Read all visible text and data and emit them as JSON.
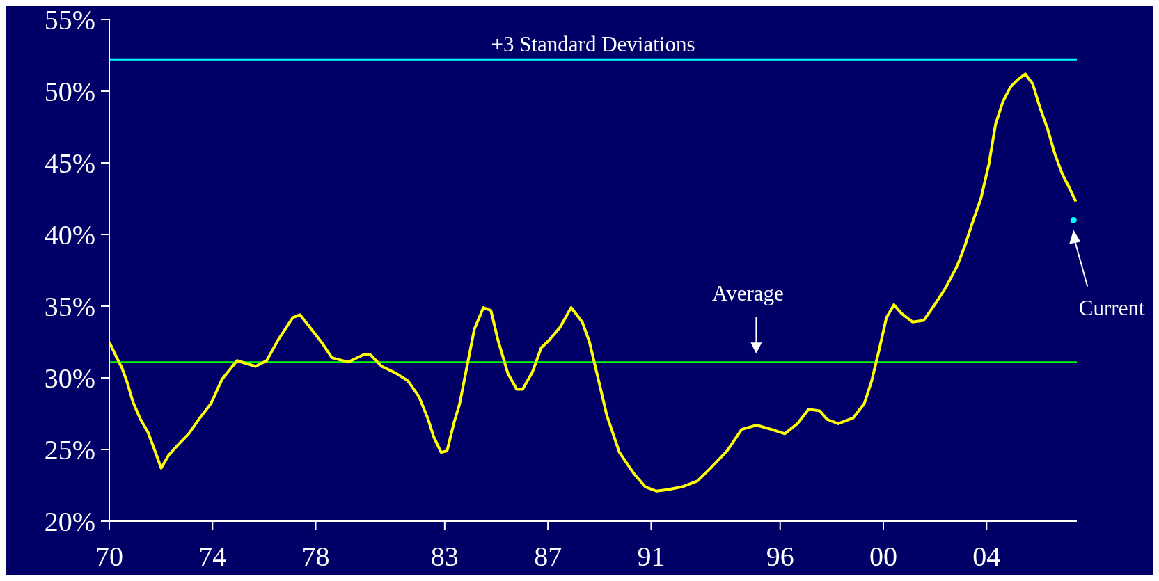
{
  "chart_data": {
    "type": "line",
    "xlim": [
      1970,
      2007.5
    ],
    "xticks": [
      {
        "value": 1970,
        "label": "70"
      },
      {
        "value": 1974,
        "label": "74"
      },
      {
        "value": 1978,
        "label": "78"
      },
      {
        "value": 1983,
        "label": "83"
      },
      {
        "value": 1987,
        "label": "87"
      },
      {
        "value": 1991,
        "label": "91"
      },
      {
        "value": 1996,
        "label": "96"
      },
      {
        "value": 2000,
        "label": "00"
      },
      {
        "value": 2004,
        "label": "04"
      }
    ],
    "ylim": [
      20,
      55
    ],
    "yticks": [
      {
        "value": 20,
        "label": "20%"
      },
      {
        "value": 25,
        "label": "25%"
      },
      {
        "value": 30,
        "label": "30%"
      },
      {
        "value": 35,
        "label": "35%"
      },
      {
        "value": 40,
        "label": "40%"
      },
      {
        "value": 45,
        "label": "45%"
      },
      {
        "value": 50,
        "label": "50%"
      },
      {
        "value": 55,
        "label": "55%"
      }
    ],
    "grid": false,
    "legend": false,
    "marker": "none",
    "line_style": "solid",
    "series": [
      {
        "color": "#ffff00",
        "x": [
          1970.0,
          1970.29,
          1970.49,
          1970.69,
          1970.92,
          1971.21,
          1971.5,
          1971.73,
          1972.01,
          1972.3,
          1972.65,
          1973.08,
          1973.51,
          1973.94,
          1974.37,
          1974.95,
          1975.67,
          1976.1,
          1976.53,
          1977.11,
          1977.39,
          1977.83,
          1978.26,
          1978.63,
          1979.26,
          1979.84,
          1980.13,
          1980.56,
          1981.13,
          1981.57,
          1982.0,
          1982.34,
          1982.57,
          1982.86,
          1983.09,
          1983.35,
          1983.58,
          1983.81,
          1984.15,
          1984.5,
          1984.79,
          1985.07,
          1985.45,
          1985.79,
          1986.02,
          1986.4,
          1986.74,
          1987.03,
          1987.46,
          1987.9,
          1988.33,
          1988.61,
          1988.9,
          1989.28,
          1989.77,
          1990.34,
          1990.77,
          1991.2,
          1991.64,
          1992.21,
          1992.79,
          1993.36,
          1993.94,
          1994.51,
          1995.09,
          1995.66,
          1996.18,
          1996.67,
          1997.1,
          1997.53,
          1997.82,
          1998.25,
          1998.83,
          1999.26,
          1999.55,
          1999.83,
          2000.12,
          2000.41,
          2000.7,
          2001.13,
          2001.56,
          2001.99,
          2002.42,
          2002.86,
          2003.14,
          2003.43,
          2003.78,
          2004.09,
          2004.35,
          2004.64,
          2004.93,
          2005.21,
          2005.5,
          2005.79,
          2006.08,
          2006.36,
          2006.65,
          2006.94,
          2007.17,
          2007.46
        ],
        "values": [
          32.5,
          31.4,
          30.7,
          29.7,
          28.3,
          27.1,
          26.2,
          25.1,
          23.7,
          24.6,
          25.3,
          26.1,
          27.2,
          28.2,
          29.9,
          31.2,
          30.8,
          31.2,
          32.6,
          34.2,
          34.4,
          33.4,
          32.4,
          31.4,
          31.1,
          31.6,
          31.6,
          30.8,
          30.3,
          29.8,
          28.7,
          27.2,
          25.9,
          24.8,
          24.9,
          26.8,
          28.2,
          30.3,
          33.4,
          34.9,
          34.7,
          32.6,
          30.3,
          29.2,
          29.2,
          30.4,
          32.1,
          32.6,
          33.5,
          34.9,
          33.9,
          32.5,
          30.3,
          27.4,
          24.8,
          23.3,
          22.4,
          22.1,
          22.2,
          22.4,
          22.8,
          23.8,
          24.9,
          26.4,
          26.7,
          26.4,
          26.1,
          26.8,
          27.8,
          27.7,
          27.1,
          26.8,
          27.2,
          28.2,
          29.8,
          31.9,
          34.2,
          35.1,
          34.5,
          33.9,
          34.0,
          35.1,
          36.3,
          37.8,
          39.1,
          40.7,
          42.5,
          44.9,
          47.7,
          49.3,
          50.3,
          50.8,
          51.2,
          50.5,
          48.8,
          47.4,
          45.6,
          44.2,
          43.4,
          42.3
        ]
      },
      {
        "type": "scatter",
        "marker": "circle",
        "color": "#00ffff",
        "x": [
          2007.37
        ],
        "values": [
          41.0
        ]
      }
    ],
    "ref_lines": [
      {
        "axis": "y",
        "value": 52.2,
        "label": "+3 Standard Deviations",
        "color": "#00ffff"
      },
      {
        "axis": "y",
        "value": 31.1,
        "label": "Average",
        "color": "#00ff00"
      }
    ],
    "annotations": [
      "Current"
    ]
  }
}
